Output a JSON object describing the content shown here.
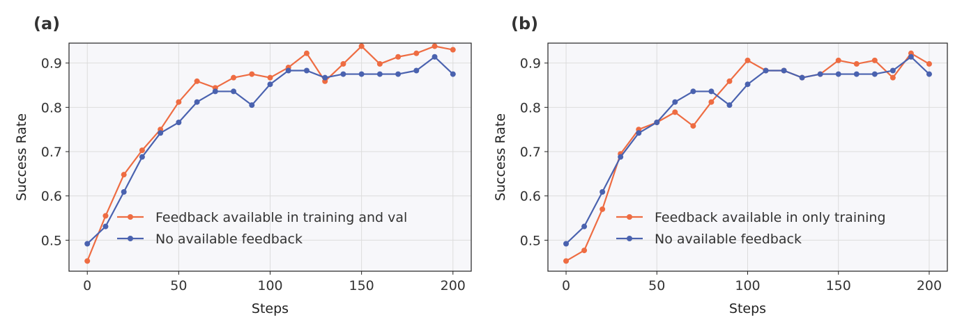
{
  "colors": {
    "orange": "#EE6C42",
    "blue": "#4A62AF",
    "plot_bg": "#F7F7FA",
    "grid": "#DCDCDC"
  },
  "chart_data": [
    {
      "type": "line",
      "panel_label": "(a)",
      "xlabel": "Steps",
      "ylabel": "Success Rate",
      "xlim": [
        -10,
        210
      ],
      "ylim": [
        0.43,
        0.945
      ],
      "xticks": [
        0,
        50,
        100,
        150,
        200
      ],
      "yticks": [
        0.5,
        0.6,
        0.7,
        0.8,
        0.9
      ],
      "ytick_labels": [
        "0.5",
        "0.6",
        "0.7",
        "0.8",
        "0.9"
      ],
      "grid": true,
      "legend_position": "lower-right",
      "x": [
        0,
        10,
        20,
        30,
        40,
        50,
        60,
        70,
        80,
        90,
        100,
        110,
        120,
        130,
        140,
        150,
        160,
        170,
        180,
        190,
        200
      ],
      "series": [
        {
          "name": "Feedback available in training and val",
          "color": "#EE6C42",
          "values": [
            0.453,
            0.555,
            0.648,
            0.703,
            0.75,
            0.812,
            0.859,
            0.844,
            0.867,
            0.875,
            0.867,
            0.89,
            0.922,
            0.859,
            0.898,
            0.938,
            0.898,
            0.914,
            0.922,
            0.938,
            0.93
          ]
        },
        {
          "name": "No available feedback",
          "color": "#4A62AF",
          "values": [
            0.492,
            0.531,
            0.609,
            0.688,
            0.742,
            0.766,
            0.812,
            0.836,
            0.836,
            0.805,
            0.852,
            0.883,
            0.883,
            0.867,
            0.875,
            0.875,
            0.875,
            0.875,
            0.883,
            0.914,
            0.875
          ]
        }
      ]
    },
    {
      "type": "line",
      "panel_label": "(b)",
      "xlabel": "Steps",
      "ylabel": "Success Rate",
      "xlim": [
        -10,
        210
      ],
      "ylim": [
        0.43,
        0.945
      ],
      "xticks": [
        0,
        50,
        100,
        150,
        200
      ],
      "yticks": [
        0.5,
        0.6,
        0.7,
        0.8,
        0.9
      ],
      "ytick_labels": [
        "0.5",
        "0.6",
        "0.7",
        "0.8",
        "0.9"
      ],
      "grid": true,
      "legend_position": "lower-right",
      "x": [
        0,
        10,
        20,
        30,
        40,
        50,
        60,
        70,
        80,
        90,
        100,
        110,
        120,
        130,
        140,
        150,
        160,
        170,
        180,
        190,
        200
      ],
      "series": [
        {
          "name": "Feedback available in only training",
          "color": "#EE6C42",
          "values": [
            0.453,
            0.477,
            0.57,
            0.695,
            0.75,
            0.766,
            0.789,
            0.758,
            0.812,
            0.859,
            0.906,
            0.883,
            0.883,
            0.867,
            0.875,
            0.906,
            0.898,
            0.906,
            0.867,
            0.922,
            0.898
          ]
        },
        {
          "name": "No available feedback",
          "color": "#4A62AF",
          "values": [
            0.492,
            0.531,
            0.609,
            0.688,
            0.742,
            0.766,
            0.812,
            0.836,
            0.836,
            0.805,
            0.852,
            0.883,
            0.883,
            0.867,
            0.875,
            0.875,
            0.875,
            0.875,
            0.883,
            0.914,
            0.875
          ]
        }
      ]
    }
  ]
}
